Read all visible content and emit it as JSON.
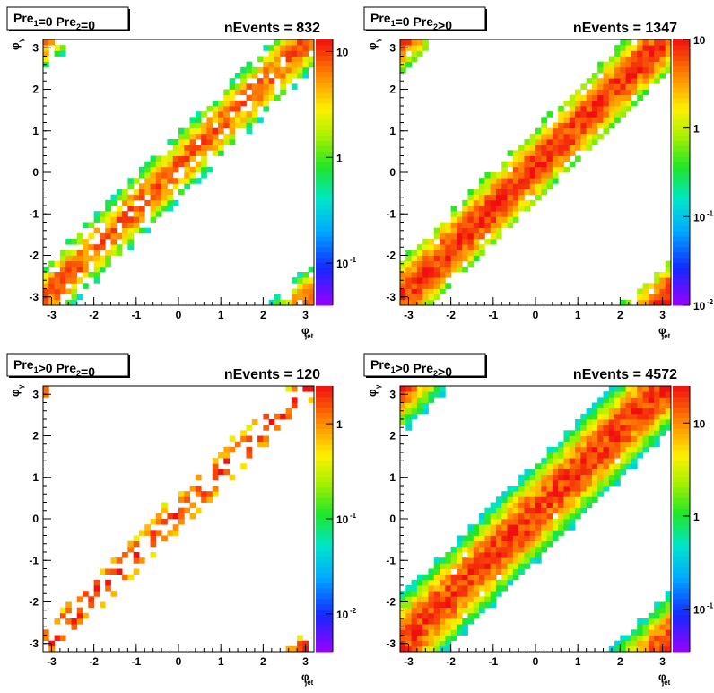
{
  "chart_data": [
    {
      "type": "heatmap",
      "label_main": "Pre",
      "label_sub1": "1",
      "label_mid": "=0  Pre",
      "label_sub2": "2",
      "label_end": "=0",
      "nevents_text": "nEvents = 832",
      "xlabel_main": "φ",
      "xlabel_sub": "jet",
      "ylabel_main": "φ",
      "ylabel_sub": "γ",
      "xlim": [
        -3.2,
        3.2
      ],
      "ylim": [
        -3.2,
        3.2
      ],
      "xticks": [
        "-3",
        "-2",
        "-1",
        "0",
        "1",
        "2",
        "3"
      ],
      "yticks": [
        "-3",
        "-2",
        "-1",
        "0",
        "1",
        "2",
        "3"
      ],
      "log_z": true,
      "zlim": [
        0.04,
        13
      ],
      "zticks": [
        {
          "v": 10,
          "label": "10"
        },
        {
          "v": 1,
          "label": "1"
        },
        {
          "v": 0.1,
          "label": "10",
          "sup": "-1"
        }
      ],
      "density": 0.62,
      "width": 0.33,
      "peak": 8
    },
    {
      "type": "heatmap",
      "label_main": "Pre",
      "label_sub1": "1",
      "label_mid": "=0  Pre",
      "label_sub2": "2",
      "label_end": ">0",
      "nevents_text": "nEvents = 1347",
      "xlabel_main": "φ",
      "xlabel_sub": "jet",
      "ylabel_main": "φ",
      "ylabel_sub": "γ",
      "xlim": [
        -3.2,
        3.2
      ],
      "ylim": [
        -3.2,
        3.2
      ],
      "xticks": [
        "-3",
        "-2",
        "-1",
        "0",
        "1",
        "2",
        "3"
      ],
      "yticks": [
        "-3",
        "-2",
        "-1",
        "0",
        "1",
        "2",
        "3"
      ],
      "log_z": true,
      "zlim": [
        0.01,
        10
      ],
      "zticks": [
        {
          "v": 10,
          "label": "10"
        },
        {
          "v": 1,
          "label": "1"
        },
        {
          "v": 0.1,
          "label": "10",
          "sup": "-1"
        },
        {
          "v": 0.01,
          "label": "10",
          "sup": "-2"
        }
      ],
      "density": 0.8,
      "width": 0.36,
      "peak": 8
    },
    {
      "type": "heatmap",
      "label_main": "Pre",
      "label_sub1": "1",
      "label_mid": ">0  Pre",
      "label_sub2": "2",
      "label_end": "=0",
      "nevents_text": "nEvents = 120",
      "xlabel_main": "φ",
      "xlabel_sub": "jet",
      "ylabel_main": "φ",
      "ylabel_sub": "γ",
      "xlim": [
        -3.2,
        3.2
      ],
      "ylim": [
        -3.2,
        3.2
      ],
      "xticks": [
        "-3",
        "-2",
        "-1",
        "0",
        "1",
        "2",
        "3"
      ],
      "yticks": [
        "-3",
        "-2",
        "-1",
        "0",
        "1",
        "2",
        "3"
      ],
      "log_z": true,
      "zlim": [
        0.004,
        2.5
      ],
      "zticks": [
        {
          "v": 1,
          "label": "1"
        },
        {
          "v": 0.1,
          "label": "10",
          "sup": "-1"
        },
        {
          "v": 0.01,
          "label": "10",
          "sup": "-2"
        }
      ],
      "density": 0.2,
      "width": 0.26,
      "peak": 2
    },
    {
      "type": "heatmap",
      "label_main": "Pre",
      "label_sub1": "1",
      "label_mid": ">0  Pre",
      "label_sub2": "2",
      "label_end": ">0",
      "nevents_text": "nEvents = 4572",
      "xlabel_main": "φ",
      "xlabel_sub": "jet",
      "ylabel_main": "φ",
      "ylabel_sub": "γ",
      "xlim": [
        -3.2,
        3.2
      ],
      "ylim": [
        -3.2,
        3.2
      ],
      "xticks": [
        "-3",
        "-2",
        "-1",
        "0",
        "1",
        "2",
        "3"
      ],
      "yticks": [
        "-3",
        "-2",
        "-1",
        "0",
        "1",
        "2",
        "3"
      ],
      "log_z": true,
      "zlim": [
        0.035,
        25
      ],
      "zticks": [
        {
          "v": 10,
          "label": "10"
        },
        {
          "v": 1,
          "label": "1"
        },
        {
          "v": 0.1,
          "label": "10",
          "sup": "-1"
        }
      ],
      "density": 0.97,
      "width": 0.42,
      "peak": 20
    }
  ]
}
